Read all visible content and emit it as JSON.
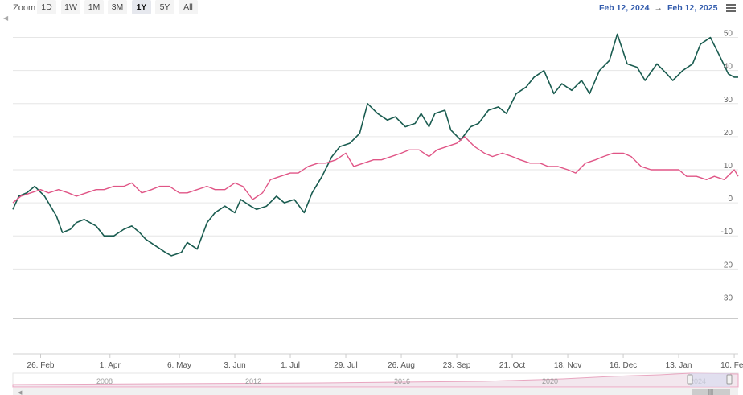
{
  "toolbar": {
    "zoom_label": "Zoom",
    "range_buttons": [
      "1D",
      "1W",
      "1M",
      "3M",
      "1Y",
      "5Y",
      "All"
    ],
    "active_range": "1Y",
    "date_from": "Feb 12, 2024",
    "arrow": "→",
    "date_to": "Feb 12, 2025"
  },
  "colors": {
    "series_green": "#1a5c50",
    "series_pink": "#e05586",
    "grid": "#e6e6e6",
    "navigator_fill": "#d8dcf0"
  },
  "navigator": {
    "labels": [
      "2008",
      "2012",
      "2016",
      "2020",
      "2024"
    ]
  },
  "chart_data": {
    "type": "line",
    "title": "",
    "xlabel": "",
    "ylabel": "",
    "ylim": [
      -35,
      55
    ],
    "yticks": [
      50,
      40,
      30,
      20,
      10,
      0,
      -10,
      -20,
      -30
    ],
    "x_tick_labels": [
      "26. Feb",
      "1. Apr",
      "6. May",
      "3. Jun",
      "1. Jul",
      "29. Jul",
      "26. Aug",
      "23. Sep",
      "21. Oct",
      "18. Nov",
      "16. Dec",
      "13. Jan",
      "10. Feb"
    ],
    "x_tick_dates": [
      "2024-02-26",
      "2024-04-01",
      "2024-05-06",
      "2024-06-03",
      "2024-07-01",
      "2024-07-29",
      "2024-08-26",
      "2024-09-23",
      "2024-10-21",
      "2024-11-18",
      "2024-12-16",
      "2025-01-13",
      "2025-02-10"
    ],
    "x_range": [
      "2024-02-12",
      "2025-02-12"
    ],
    "grid": true,
    "series": [
      {
        "color": "#1a5c50",
        "x": [
          "2024-02-12",
          "2024-02-15",
          "2024-02-19",
          "2024-02-23",
          "2024-02-28",
          "2024-03-05",
          "2024-03-08",
          "2024-03-12",
          "2024-03-15",
          "2024-03-19",
          "2024-03-25",
          "2024-03-29",
          "2024-04-03",
          "2024-04-08",
          "2024-04-12",
          "2024-04-16",
          "2024-04-19",
          "2024-04-24",
          "2024-04-29",
          "2024-05-02",
          "2024-05-07",
          "2024-05-10",
          "2024-05-15",
          "2024-05-20",
          "2024-05-24",
          "2024-05-29",
          "2024-06-03",
          "2024-06-06",
          "2024-06-11",
          "2024-06-14",
          "2024-06-19",
          "2024-06-24",
          "2024-06-28",
          "2024-07-03",
          "2024-07-08",
          "2024-07-12",
          "2024-07-17",
          "2024-07-22",
          "2024-07-26",
          "2024-07-31",
          "2024-08-05",
          "2024-08-09",
          "2024-08-14",
          "2024-08-19",
          "2024-08-23",
          "2024-08-28",
          "2024-09-02",
          "2024-09-05",
          "2024-09-09",
          "2024-09-12",
          "2024-09-17",
          "2024-09-20",
          "2024-09-25",
          "2024-09-30",
          "2024-10-04",
          "2024-10-09",
          "2024-10-14",
          "2024-10-18",
          "2024-10-23",
          "2024-10-28",
          "2024-11-01",
          "2024-11-06",
          "2024-11-11",
          "2024-11-15",
          "2024-11-20",
          "2024-11-25",
          "2024-11-29",
          "2024-12-04",
          "2024-12-09",
          "2024-12-13",
          "2024-12-18",
          "2024-12-23",
          "2024-12-27",
          "2025-01-02",
          "2025-01-07",
          "2025-01-10",
          "2025-01-15",
          "2025-01-20",
          "2025-01-24",
          "2025-01-29",
          "2025-02-03",
          "2025-02-07",
          "2025-02-10",
          "2025-02-12"
        ],
        "values": [
          -2,
          2,
          3,
          5,
          2,
          -4,
          -9,
          -8,
          -6,
          -5,
          -7,
          -10,
          -10,
          -8,
          -7,
          -9,
          -11,
          -13,
          -15,
          -16,
          -15,
          -12,
          -14,
          -6,
          -3,
          -1,
          -3,
          1,
          -1,
          -2,
          -1,
          2,
          0,
          1,
          -3,
          3,
          8,
          14,
          17,
          18,
          21,
          30,
          27,
          25,
          26,
          23,
          24,
          27,
          23,
          27,
          28,
          22,
          19,
          23,
          24,
          28,
          29,
          27,
          33,
          35,
          38,
          40,
          33,
          36,
          34,
          37,
          33,
          40,
          43,
          51,
          42,
          41,
          37,
          42,
          39,
          37,
          40,
          42,
          48,
          50,
          44,
          39,
          38,
          38
        ]
      },
      {
        "color": "#e05586",
        "x": [
          "2024-02-12",
          "2024-02-16",
          "2024-02-21",
          "2024-02-26",
          "2024-03-01",
          "2024-03-06",
          "2024-03-11",
          "2024-03-15",
          "2024-03-20",
          "2024-03-25",
          "2024-03-29",
          "2024-04-03",
          "2024-04-08",
          "2024-04-12",
          "2024-04-17",
          "2024-04-22",
          "2024-04-26",
          "2024-05-01",
          "2024-05-06",
          "2024-05-10",
          "2024-05-15",
          "2024-05-20",
          "2024-05-24",
          "2024-05-29",
          "2024-06-03",
          "2024-06-07",
          "2024-06-12",
          "2024-06-17",
          "2024-06-21",
          "2024-06-26",
          "2024-07-01",
          "2024-07-05",
          "2024-07-10",
          "2024-07-15",
          "2024-07-19",
          "2024-07-24",
          "2024-07-29",
          "2024-08-02",
          "2024-08-07",
          "2024-08-12",
          "2024-08-16",
          "2024-08-21",
          "2024-08-26",
          "2024-08-30",
          "2024-09-04",
          "2024-09-09",
          "2024-09-13",
          "2024-09-18",
          "2024-09-23",
          "2024-09-27",
          "2024-10-02",
          "2024-10-07",
          "2024-10-11",
          "2024-10-16",
          "2024-10-21",
          "2024-10-25",
          "2024-10-30",
          "2024-11-04",
          "2024-11-08",
          "2024-11-13",
          "2024-11-18",
          "2024-11-22",
          "2024-11-27",
          "2024-12-02",
          "2024-12-06",
          "2024-12-11",
          "2024-12-16",
          "2024-12-20",
          "2024-12-25",
          "2024-12-30",
          "2025-01-03",
          "2025-01-08",
          "2025-01-13",
          "2025-01-17",
          "2025-01-22",
          "2025-01-27",
          "2025-01-31",
          "2025-02-05",
          "2025-02-10",
          "2025-02-12"
        ],
        "values": [
          0,
          2,
          3,
          4,
          3,
          4,
          3,
          2,
          3,
          4,
          4,
          5,
          5,
          6,
          3,
          4,
          5,
          5,
          3,
          3,
          4,
          5,
          4,
          4,
          6,
          5,
          1,
          3,
          7,
          8,
          9,
          9,
          11,
          12,
          12,
          13,
          15,
          11,
          12,
          13,
          13,
          14,
          15,
          16,
          16,
          14,
          16,
          17,
          18,
          20,
          17,
          15,
          14,
          15,
          14,
          13,
          12,
          12,
          11,
          11,
          10,
          9,
          12,
          13,
          14,
          15,
          15,
          14,
          11,
          10,
          10,
          10,
          10,
          8,
          8,
          7,
          8,
          7,
          10,
          8
        ]
      }
    ]
  }
}
